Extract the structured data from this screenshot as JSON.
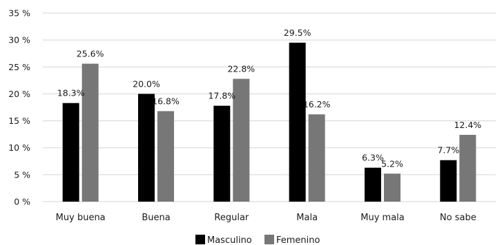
{
  "chart_data": {
    "type": "bar",
    "title": "",
    "xlabel": "",
    "ylabel": "",
    "categories": [
      "Muy buena",
      "Buena",
      "Regular",
      "Mala",
      "Muy mala",
      "No sabe"
    ],
    "series": [
      {
        "name": "Masculino",
        "color": "#000000",
        "values": [
          18.3,
          20.0,
          17.8,
          29.5,
          6.3,
          7.7
        ],
        "labels": [
          "18.3%",
          "20.0%",
          "17.8%",
          "29.5%",
          "6.3%",
          "7.7%"
        ]
      },
      {
        "name": "Femenino",
        "color": "#777777",
        "values": [
          25.6,
          16.8,
          22.8,
          16.2,
          5.2,
          12.4
        ],
        "labels": [
          "25.6%",
          "16.8%",
          "22.8%",
          "16.2%",
          "5.2%",
          "12.4%"
        ]
      }
    ],
    "ylim": [
      0,
      35
    ],
    "yticks": [
      0,
      5,
      10,
      15,
      20,
      25,
      30,
      35
    ],
    "ytick_labels": [
      "0 %",
      "5 %",
      "10 %",
      "15 %",
      "20 %",
      "25 %",
      "30 %",
      "35 %"
    ],
    "grid": true,
    "legend_position": "bottom-center"
  }
}
